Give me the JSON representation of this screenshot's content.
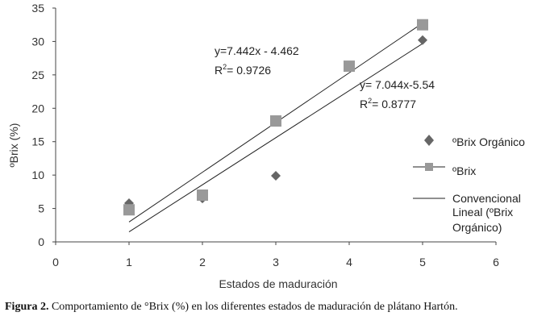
{
  "chart_data": {
    "type": "scatter",
    "xlabel": "Estados de maduración",
    "ylabel": "ºBrix (%)",
    "xlim": [
      0,
      6
    ],
    "ylim": [
      0,
      35
    ],
    "xticks": [
      0,
      1,
      2,
      3,
      4,
      5,
      6
    ],
    "yticks": [
      0,
      5,
      10,
      15,
      20,
      25,
      30,
      35
    ],
    "grid": false,
    "legend_position": "right",
    "series": [
      {
        "name": "ºBrix Orgánico",
        "marker": "diamond",
        "color": "#666666",
        "x": [
          1,
          2,
          3,
          5
        ],
        "y": [
          5.8,
          6.5,
          9.9,
          30.2
        ]
      },
      {
        "name": "ºBrix",
        "marker": "square",
        "color": "#999999",
        "x": [
          1,
          2,
          3,
          4,
          5
        ],
        "y": [
          4.8,
          7.0,
          18.1,
          26.3,
          32.5
        ]
      }
    ],
    "trendlines": [
      {
        "series": "ºBrix",
        "slope": 7.442,
        "intercept": -4.462,
        "x_range": [
          1,
          5
        ],
        "equation": "y=7.442x - 4.462",
        "r2_prefix": "R",
        "r2_value": "= 0.9726"
      },
      {
        "series": "ºBrix Orgánico",
        "slope": 7.044,
        "intercept": -5.54,
        "x_range": [
          1,
          5
        ],
        "equation": "y= 7.044x-5.54",
        "r2_prefix": "R",
        "r2_value": "= 0.8777",
        "legend_label": "Convencional Lineal (ºBrix Orgánico)",
        "legend_lines": [
          "Convencional",
          "Lineal (ºBrix",
          "Orgánico)"
        ]
      }
    ]
  },
  "caption": {
    "label": "Figura 2.",
    "text": " Comportamiento de °Brix (%) en los diferentes estados de maduración de plátano Hartón."
  }
}
